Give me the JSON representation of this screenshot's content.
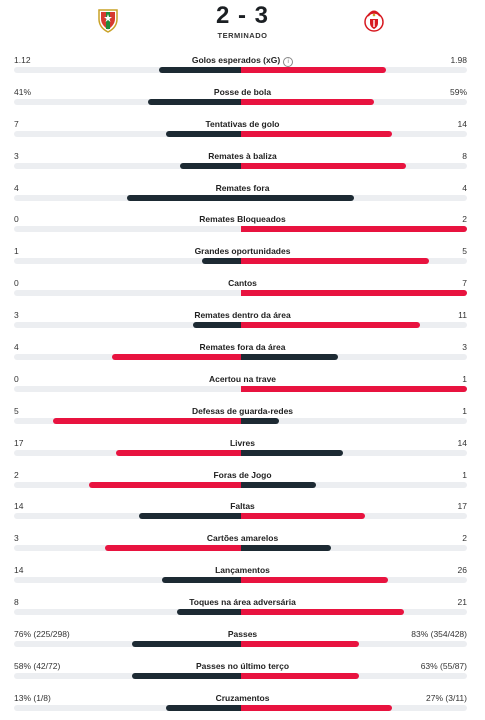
{
  "match": {
    "score": "2 - 3",
    "status": "TERMINADO",
    "home_crest": "estrela-amadora-crest",
    "away_crest": "benfica-crest"
  },
  "colors": {
    "home_bar": "#1d2a33",
    "away_bar": "#e8133f",
    "track": "#eceef1"
  },
  "stats": [
    {
      "label": "Golos esperados (xG)",
      "home": "1.12",
      "away": "1.98",
      "info": true,
      "hf": 0.36,
      "af": 0.64,
      "hc": "dark",
      "ac": "red"
    },
    {
      "label": "Posse de bola",
      "home": "41%",
      "away": "59%",
      "hf": 0.41,
      "af": 0.59,
      "hc": "dark",
      "ac": "red"
    },
    {
      "label": "Tentativas de golo",
      "home": "7",
      "away": "14",
      "hf": 0.33,
      "af": 0.67,
      "hc": "dark",
      "ac": "red"
    },
    {
      "label": "Remates à baliza",
      "home": "3",
      "away": "8",
      "hf": 0.27,
      "af": 0.73,
      "hc": "dark",
      "ac": "red"
    },
    {
      "label": "Remates fora",
      "home": "4",
      "away": "4",
      "hf": 0.5,
      "af": 0.5,
      "hc": "dark",
      "ac": "dark"
    },
    {
      "label": "Remates Bloqueados",
      "home": "0",
      "away": "2",
      "hf": 0.0,
      "af": 1.0,
      "hc": "dark",
      "ac": "red"
    },
    {
      "label": "Grandes oportunidades",
      "home": "1",
      "away": "5",
      "hf": 0.17,
      "af": 0.83,
      "hc": "dark",
      "ac": "red"
    },
    {
      "label": "Cantos",
      "home": "0",
      "away": "7",
      "hf": 0.0,
      "af": 1.0,
      "hc": "dark",
      "ac": "red"
    },
    {
      "label": "Remates dentro da área",
      "home": "3",
      "away": "11",
      "hf": 0.21,
      "af": 0.79,
      "hc": "dark",
      "ac": "red"
    },
    {
      "label": "Remates fora da área",
      "home": "4",
      "away": "3",
      "hf": 0.57,
      "af": 0.43,
      "hc": "red",
      "ac": "dark"
    },
    {
      "label": "Acertou na trave",
      "home": "0",
      "away": "1",
      "hf": 0.0,
      "af": 1.0,
      "hc": "dark",
      "ac": "red"
    },
    {
      "label": "Defesas de guarda-redes",
      "home": "5",
      "away": "1",
      "hf": 0.83,
      "af": 0.17,
      "hc": "red",
      "ac": "dark"
    },
    {
      "label": "Livres",
      "home": "17",
      "away": "14",
      "hf": 0.55,
      "af": 0.45,
      "hc": "red",
      "ac": "dark"
    },
    {
      "label": "Foras de Jogo",
      "home": "2",
      "away": "1",
      "hf": 0.67,
      "af": 0.33,
      "hc": "red",
      "ac": "dark"
    },
    {
      "label": "Faltas",
      "home": "14",
      "away": "17",
      "hf": 0.45,
      "af": 0.55,
      "hc": "dark",
      "ac": "red"
    },
    {
      "label": "Cartões amarelos",
      "home": "3",
      "away": "2",
      "hf": 0.6,
      "af": 0.4,
      "hc": "red",
      "ac": "dark"
    },
    {
      "label": "Lançamentos",
      "home": "14",
      "away": "26",
      "hf": 0.35,
      "af": 0.65,
      "hc": "dark",
      "ac": "red"
    },
    {
      "label": "Toques na área adversária",
      "home": "8",
      "away": "21",
      "hf": 0.28,
      "af": 0.72,
      "hc": "dark",
      "ac": "red"
    },
    {
      "label": "Passes",
      "home": "76% (225/298)",
      "away": "83% (354/428)",
      "hf": 0.48,
      "af": 0.52,
      "hc": "dark",
      "ac": "red"
    },
    {
      "label": "Passes no último terço",
      "home": "58% (42/72)",
      "away": "63% (55/87)",
      "hf": 0.48,
      "af": 0.52,
      "hc": "dark",
      "ac": "red"
    },
    {
      "label": "Cruzamentos",
      "home": "13% (1/8)",
      "away": "27% (3/11)",
      "hf": 0.33,
      "af": 0.67,
      "hc": "dark",
      "ac": "red"
    }
  ]
}
